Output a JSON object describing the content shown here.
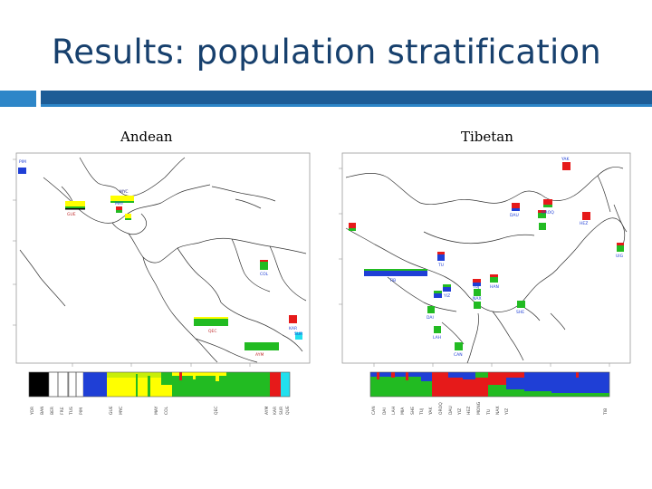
{
  "slide": {
    "title": "Results: population stratification"
  },
  "panels": {
    "andean": {
      "label": "Andean",
      "population_labels": [
        "YOR",
        "BAN",
        "BER",
        "FRE",
        "TUS",
        "PIM",
        "GUE",
        "MYC",
        "MAY",
        "COL",
        "QEC",
        "AYM",
        "KAR",
        "SUR",
        "QUE"
      ],
      "map_labels": [
        "PIM",
        "GUE",
        "MYC",
        "MAY",
        "QEC",
        "COL",
        "KAR",
        "SUR",
        "AYM"
      ]
    },
    "tibetan": {
      "label": "Tibetan",
      "population_labels": [
        "CAN",
        "DAI",
        "LAH",
        "MIA",
        "SHE",
        "TUJ",
        "YAK",
        "OROQ",
        "DAU",
        "YIZ",
        "HEZ",
        "MONG",
        "TU",
        "NAX",
        "YIZ",
        "TIB"
      ],
      "map_labels": [
        "YAK",
        "OROQ",
        "DAU",
        "HEZ",
        "UIG",
        "TU",
        "TIB",
        "YIZ",
        "NAX",
        "TUJ",
        "HAN",
        "SHE",
        "DAI",
        "LAH",
        "CAN"
      ]
    }
  },
  "colors": {
    "title": "#17406d",
    "rule_light": "#2e86c8",
    "rule_dark": "#1d5c96",
    "component_black": "#000000",
    "component_white": "#ffffff",
    "component_yellow": "#ffff00",
    "component_green": "#22bb22",
    "component_red": "#e61a1a",
    "component_blue": "#1f3fd6",
    "component_cyan": "#22e0ee"
  }
}
